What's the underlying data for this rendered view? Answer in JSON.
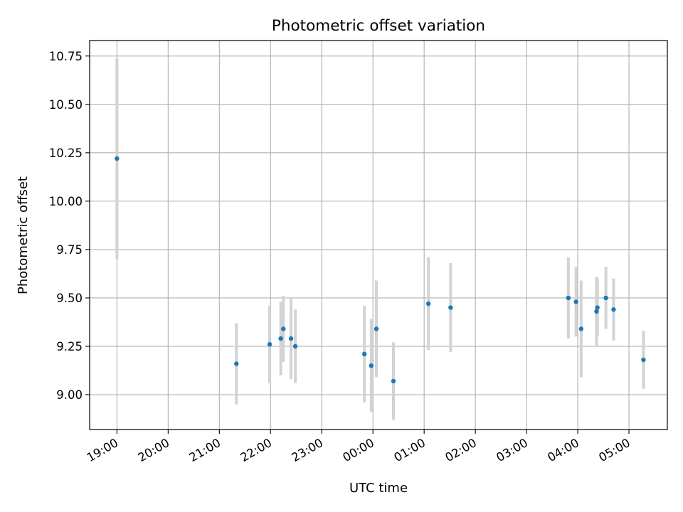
{
  "chart_data": {
    "type": "scatter",
    "title": "Photometric offset variation",
    "xlabel": "UTC time",
    "ylabel": "Photometric offset",
    "x_axis_kind": "time (hours, wraps past midnight)",
    "xlim": [
      "18:28",
      "05:45"
    ],
    "ylim": [
      8.82,
      10.83
    ],
    "grid": true,
    "xticks": [
      "19:00",
      "20:00",
      "21:00",
      "22:00",
      "23:00",
      "00:00",
      "01:00",
      "02:00",
      "03:00",
      "04:00",
      "05:00"
    ],
    "yticks": [
      "9.00",
      "9.25",
      "9.50",
      "9.75",
      "10.00",
      "10.25",
      "10.50",
      "10.75"
    ],
    "colors": {
      "points": "#1f77b4",
      "error_bars": "#d3d3d3",
      "grid": "#b0b0b0"
    },
    "points": [
      {
        "x": "19:00",
        "y": 10.22,
        "err": 0.52
      },
      {
        "x": "21:20",
        "y": 9.16,
        "err": 0.21
      },
      {
        "x": "21:59",
        "y": 9.26,
        "err": 0.2
      },
      {
        "x": "22:12",
        "y": 9.29,
        "err": 0.19
      },
      {
        "x": "22:15",
        "y": 9.34,
        "err": 0.17
      },
      {
        "x": "22:24",
        "y": 9.29,
        "err": 0.21
      },
      {
        "x": "22:29",
        "y": 9.25,
        "err": 0.19
      },
      {
        "x": "23:50",
        "y": 9.21,
        "err": 0.25
      },
      {
        "x": "23:58",
        "y": 9.15,
        "err": 0.24
      },
      {
        "x": "00:04",
        "y": 9.34,
        "err": 0.25
      },
      {
        "x": "00:24",
        "y": 9.07,
        "err": 0.2
      },
      {
        "x": "01:05",
        "y": 9.47,
        "err": 0.24
      },
      {
        "x": "01:31",
        "y": 9.45,
        "err": 0.23
      },
      {
        "x": "03:49",
        "y": 9.5,
        "err": 0.21
      },
      {
        "x": "03:58",
        "y": 9.48,
        "err": 0.18
      },
      {
        "x": "04:04",
        "y": 9.34,
        "err": 0.25
      },
      {
        "x": "04:22",
        "y": 9.43,
        "err": 0.18
      },
      {
        "x": "04:23",
        "y": 9.45,
        "err": 0.15
      },
      {
        "x": "04:33",
        "y": 9.5,
        "err": 0.16
      },
      {
        "x": "04:42",
        "y": 9.44,
        "err": 0.16
      },
      {
        "x": "05:17",
        "y": 9.18,
        "err": 0.15
      }
    ]
  }
}
